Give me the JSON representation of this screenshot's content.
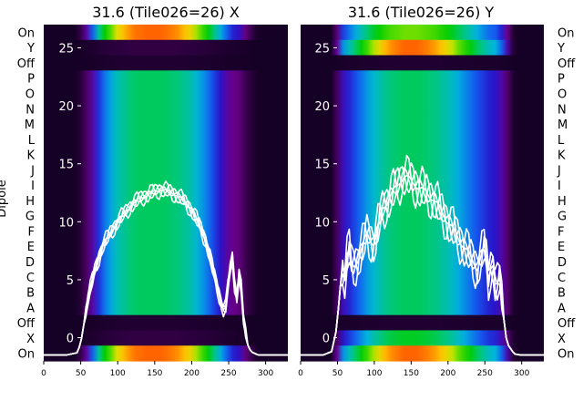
{
  "chart_data": [
    {
      "type": "heatmap",
      "panel": "X",
      "title": "31.6 (Tile026=26) X",
      "ylabel": "Dipole",
      "xlim": [
        0,
        330
      ],
      "x_ticks": [
        "0",
        "50",
        "100",
        "150",
        "200",
        "250",
        "300"
      ],
      "overlay_ylim": [
        -2,
        27
      ],
      "overlay_ticks": [
        "0",
        "5",
        "10",
        "15",
        "20",
        "25"
      ],
      "rows": [
        "On",
        "Y",
        "Off",
        "P",
        "O",
        "N",
        "M",
        "L",
        "K",
        "J",
        "I",
        "H",
        "G",
        "F",
        "E",
        "D",
        "C",
        "B",
        "A",
        "Off",
        "X",
        "On"
      ],
      "band_profile": {
        "x": [
          0,
          45,
          55,
          65,
          80,
          100,
          120,
          140,
          160,
          180,
          200,
          220,
          240,
          255,
          265,
          275,
          290,
          330
        ],
        "level": [
          0,
          0,
          0.12,
          0.3,
          0.6,
          0.85,
          0.98,
          1.0,
          1.0,
          0.96,
          0.85,
          0.65,
          0.4,
          0.25,
          0.22,
          0.1,
          0,
          0
        ]
      },
      "row_strength": [
        1.0,
        0.05,
        0.02,
        0.55,
        0.55,
        0.55,
        0.55,
        0.55,
        0.55,
        0.55,
        0.55,
        0.55,
        0.55,
        0.55,
        0.55,
        0.55,
        0.55,
        0.55,
        0.55,
        0.02,
        0.05,
        1.0
      ],
      "overlay": {
        "x": [
          0,
          10,
          30,
          45,
          50,
          55,
          60,
          70,
          80,
          90,
          100,
          110,
          120,
          130,
          140,
          150,
          160,
          170,
          180,
          190,
          200,
          210,
          220,
          230,
          240,
          245,
          250,
          255,
          260,
          265,
          270,
          275,
          280,
          290,
          300,
          310,
          330
        ],
        "y": [
          -1.5,
          -1.5,
          -1.5,
          -1.3,
          -0.5,
          1.5,
          3.5,
          6,
          8,
          9,
          10,
          10.8,
          11.5,
          12,
          12.3,
          12.6,
          12.8,
          12.6,
          12.3,
          11.8,
          11,
          9.8,
          8.2,
          5.5,
          3,
          2,
          5,
          7,
          3,
          6,
          1.5,
          -0.5,
          -1.2,
          -1.5,
          -1.5,
          -1.5,
          -1.5
        ]
      }
    },
    {
      "type": "heatmap",
      "panel": "Y",
      "title": "31.6 (Tile026=26) Y",
      "xlim": [
        0,
        330
      ],
      "x_ticks": [
        "0",
        "50",
        "100",
        "150",
        "200",
        "250",
        "300"
      ],
      "overlay_ylim": [
        -2,
        27
      ],
      "overlay_ticks": [
        "0",
        "5",
        "10",
        "15",
        "20",
        "25"
      ],
      "rows": [
        "On",
        "Y",
        "Off",
        "P",
        "O",
        "N",
        "M",
        "L",
        "K",
        "J",
        "I",
        "H",
        "G",
        "F",
        "E",
        "D",
        "C",
        "B",
        "A",
        "Off",
        "X",
        "On"
      ],
      "band_profile": {
        "x": [
          0,
          45,
          55,
          65,
          80,
          100,
          120,
          140,
          160,
          180,
          200,
          220,
          240,
          255,
          265,
          275,
          290,
          330
        ],
        "level": [
          0,
          0,
          0.35,
          0.45,
          0.6,
          0.8,
          0.95,
          1.0,
          1.0,
          0.95,
          0.85,
          0.7,
          0.55,
          0.45,
          0.42,
          0.3,
          0,
          0
        ]
      },
      "row_strength": [
        0.75,
        1.0,
        0.02,
        0.55,
        0.55,
        0.55,
        0.55,
        0.55,
        0.55,
        0.55,
        0.55,
        0.55,
        0.55,
        0.55,
        0.55,
        0.55,
        0.55,
        0.55,
        0.55,
        0.02,
        0.6,
        1.0
      ],
      "overlay": {
        "x": [
          0,
          10,
          30,
          42,
          48,
          52,
          56,
          60,
          65,
          70,
          80,
          90,
          100,
          110,
          120,
          130,
          140,
          150,
          160,
          170,
          180,
          190,
          200,
          210,
          220,
          230,
          240,
          250,
          255,
          260,
          265,
          270,
          275,
          280,
          290,
          300,
          310,
          330
        ],
        "y": [
          -1.5,
          -1.5,
          -1.5,
          -1.2,
          0.5,
          3,
          6,
          5,
          8,
          6,
          7,
          9,
          8,
          11,
          12,
          13,
          14,
          13.5,
          13,
          12.5,
          12,
          11,
          10,
          9,
          8,
          7,
          6,
          8,
          5,
          7,
          4,
          5,
          2,
          -0.5,
          -1.4,
          -1.5,
          -1.5,
          -1.5
        ]
      }
    }
  ]
}
